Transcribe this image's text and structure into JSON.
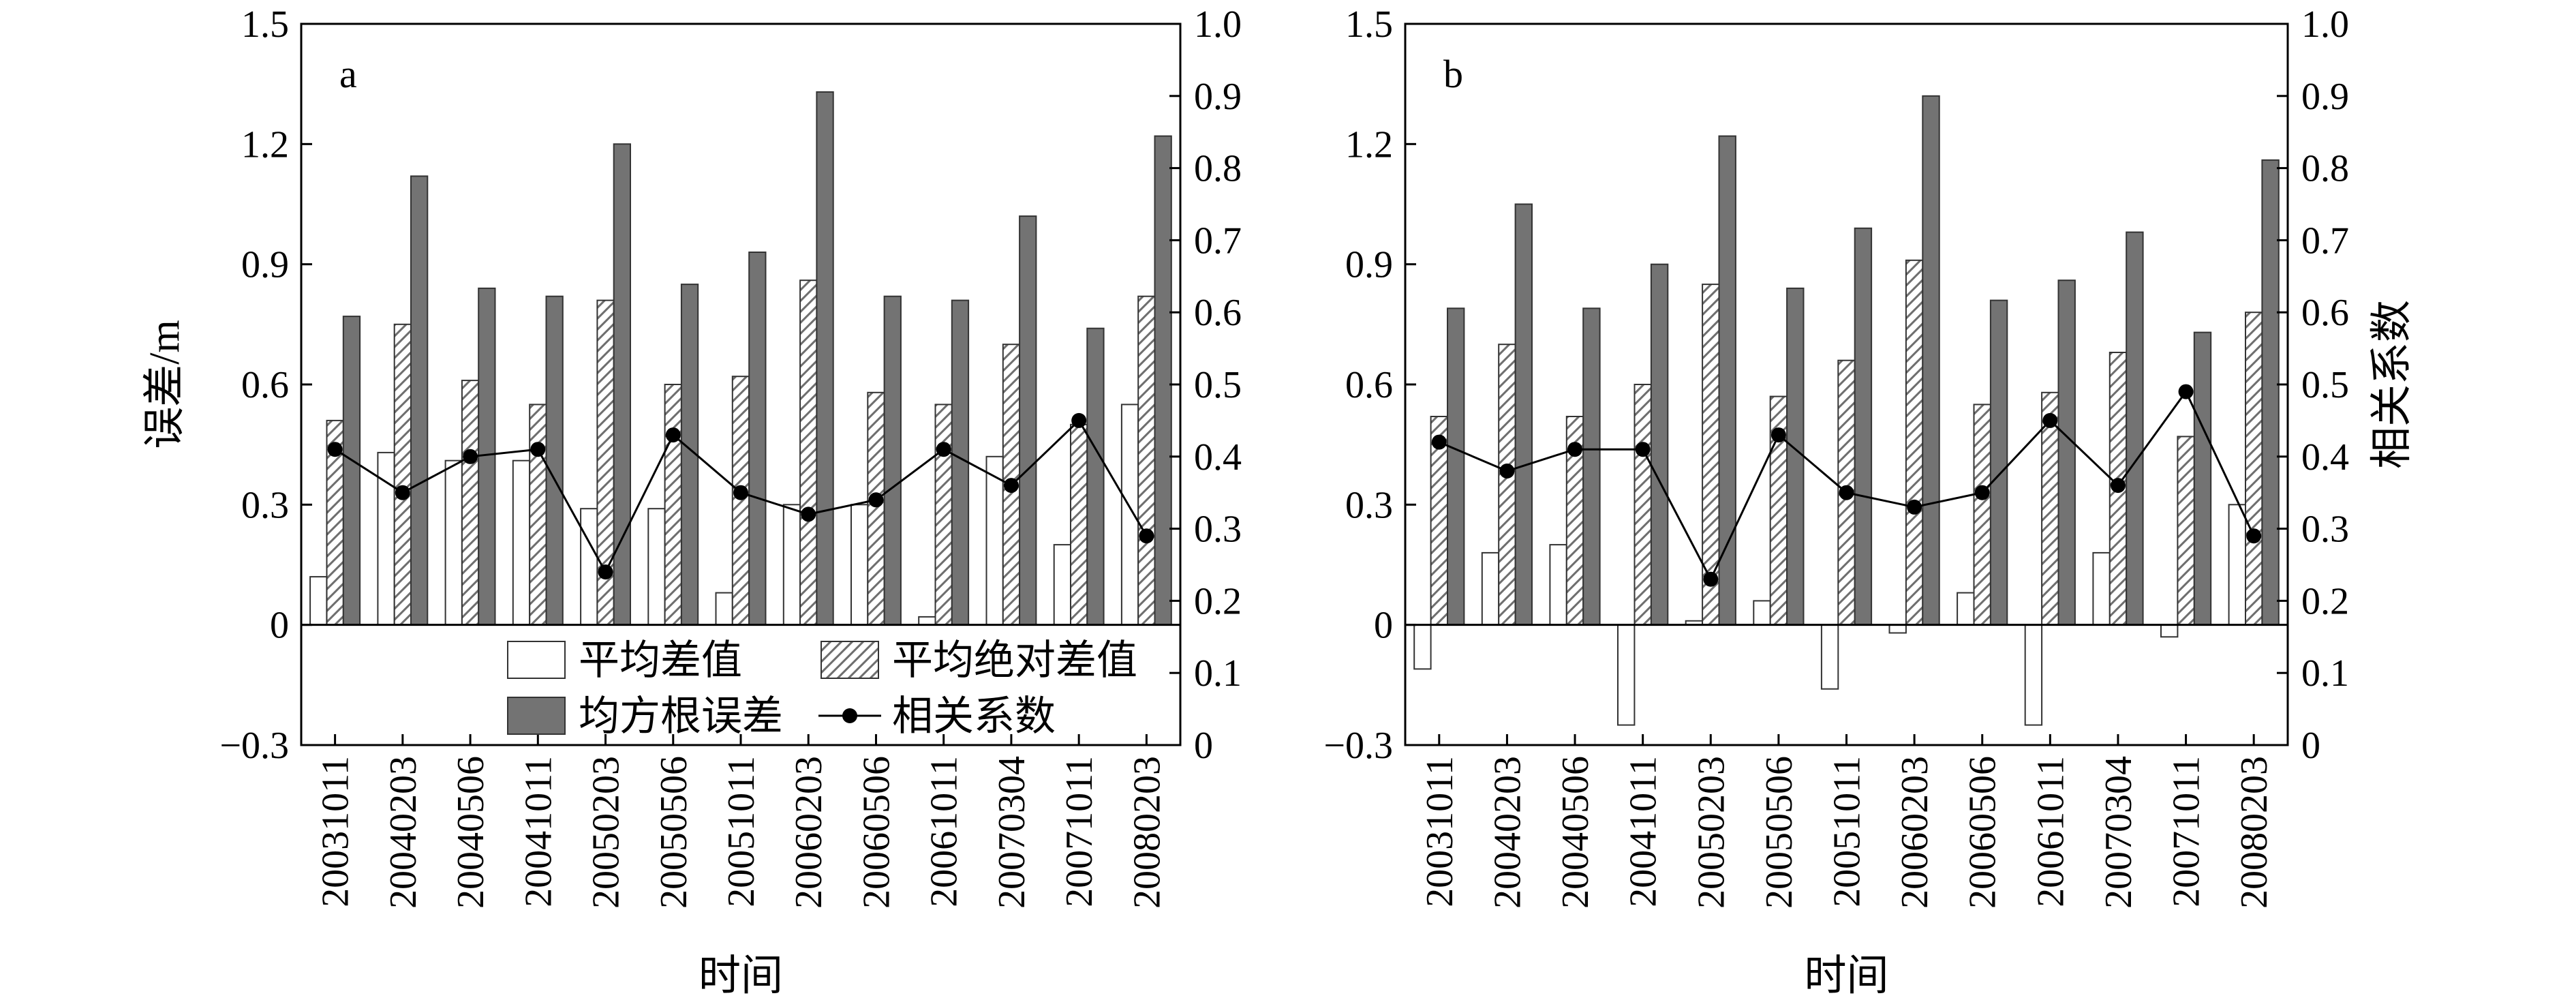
{
  "colors": {
    "mean_bar_fill": "#ffffff",
    "mean_abs_bar_fill": "#ffffff",
    "mean_abs_hatch": "#6e6e6e",
    "rmse_bar_fill": "#737373",
    "line": "#000000",
    "axis": "#000000"
  },
  "legend": {
    "mean": "平均差值",
    "mean_abs": "平均绝对差值",
    "rmse": "均方根误差",
    "corr": "相关系数"
  },
  "chart_data": [
    {
      "panel": "a",
      "type": "bar",
      "xlabel": "时间",
      "ylabel": "误差/m",
      "y2label": "",
      "ylim": [
        -0.3,
        1.5
      ],
      "yticks": [
        "−0.3",
        "0",
        "0.3",
        "0.6",
        "0.9",
        "1.2",
        "1.5"
      ],
      "y2lim": [
        0,
        1.0
      ],
      "y2ticks": [
        "0",
        "0.1",
        "0.2",
        "0.3",
        "0.4",
        "0.5",
        "0.6",
        "0.7",
        "0.8",
        "0.9",
        "1.0"
      ],
      "categories": [
        "20031011",
        "20040203",
        "20040506",
        "20041011",
        "20050203",
        "20050506",
        "20051011",
        "20060203",
        "20060506",
        "20061011",
        "20070304",
        "20071011",
        "20080203"
      ],
      "legend_position": "bottom-center",
      "series": [
        {
          "name": "平均差值",
          "kind": "bar",
          "axis": "left",
          "values": [
            0.12,
            0.43,
            0.41,
            0.41,
            0.29,
            0.29,
            0.08,
            0.3,
            0.3,
            0.02,
            0.42,
            0.2,
            0.55
          ]
        },
        {
          "name": "平均绝对差值",
          "kind": "bar",
          "axis": "left",
          "values": [
            0.51,
            0.75,
            0.61,
            0.55,
            0.81,
            0.6,
            0.62,
            0.86,
            0.58,
            0.55,
            0.7,
            0.5,
            0.82
          ]
        },
        {
          "name": "均方根误差",
          "kind": "bar",
          "axis": "left",
          "values": [
            0.77,
            1.12,
            0.84,
            0.82,
            1.2,
            0.85,
            0.93,
            1.33,
            0.82,
            0.81,
            1.02,
            0.74,
            1.22
          ]
        },
        {
          "name": "相关系数",
          "kind": "line",
          "axis": "right",
          "values": [
            0.41,
            0.35,
            0.4,
            0.41,
            0.24,
            0.43,
            0.35,
            0.32,
            0.34,
            0.41,
            0.36,
            0.45,
            0.29
          ]
        }
      ]
    },
    {
      "panel": "b",
      "type": "bar",
      "xlabel": "时间",
      "ylabel": "",
      "y2label": "相关系数",
      "ylim": [
        -0.3,
        1.5
      ],
      "yticks": [
        "−0.3",
        "0",
        "0.3",
        "0.6",
        "0.9",
        "1.2",
        "1.5"
      ],
      "y2lim": [
        0,
        1.0
      ],
      "y2ticks": [
        "0",
        "0.1",
        "0.2",
        "0.3",
        "0.4",
        "0.5",
        "0.6",
        "0.7",
        "0.8",
        "0.9",
        "1.0"
      ],
      "categories": [
        "20031011",
        "20040203",
        "20040506",
        "20041011",
        "20050203",
        "20050506",
        "20051011",
        "20060203",
        "20060506",
        "20061011",
        "20070304",
        "20071011",
        "20080203"
      ],
      "legend_position": "none",
      "series": [
        {
          "name": "平均差值",
          "kind": "bar",
          "axis": "left",
          "values": [
            -0.11,
            0.18,
            0.2,
            -0.25,
            0.01,
            0.06,
            -0.16,
            -0.02,
            0.08,
            -0.25,
            0.18,
            -0.03,
            0.3
          ]
        },
        {
          "name": "平均绝对差值",
          "kind": "bar",
          "axis": "left",
          "values": [
            0.52,
            0.7,
            0.52,
            0.6,
            0.85,
            0.57,
            0.66,
            0.91,
            0.55,
            0.58,
            0.68,
            0.47,
            0.78
          ]
        },
        {
          "name": "均方根误差",
          "kind": "bar",
          "axis": "left",
          "values": [
            0.79,
            1.05,
            0.79,
            0.9,
            1.22,
            0.84,
            0.99,
            1.32,
            0.81,
            0.86,
            0.98,
            0.73,
            1.16
          ]
        },
        {
          "name": "相关系数",
          "kind": "line",
          "axis": "right",
          "values": [
            0.42,
            0.38,
            0.41,
            0.41,
            0.23,
            0.43,
            0.35,
            0.33,
            0.35,
            0.45,
            0.36,
            0.49,
            0.29
          ]
        }
      ]
    }
  ]
}
